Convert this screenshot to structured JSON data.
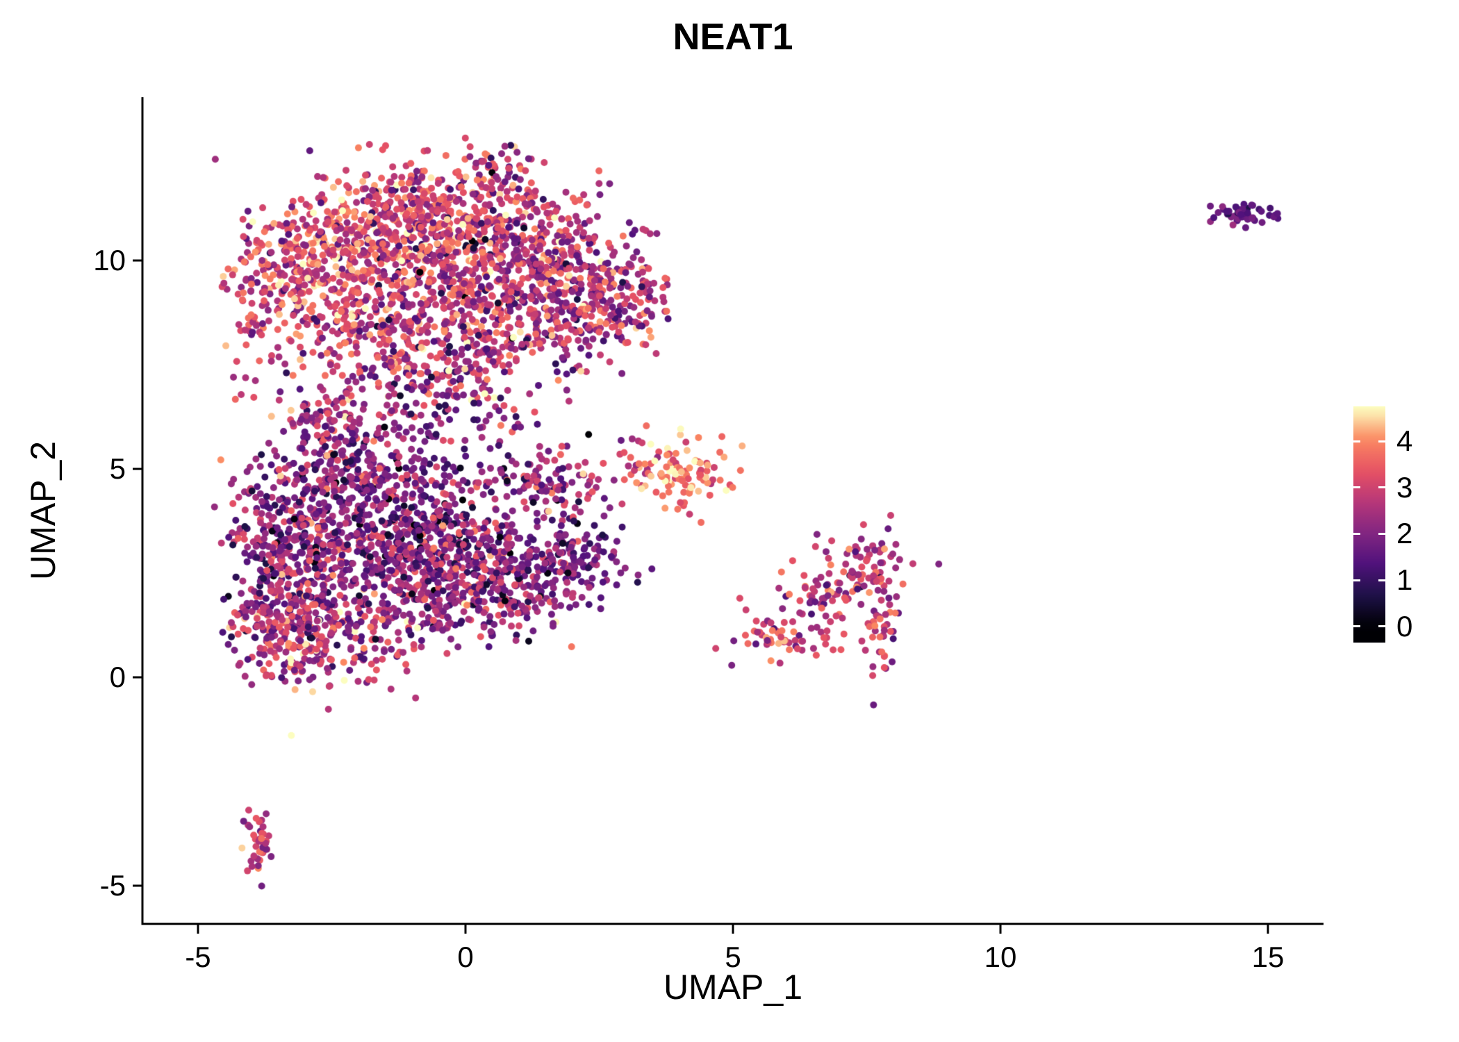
{
  "title": "NEAT1",
  "chart_data": {
    "type": "scatter",
    "title": "NEAT1",
    "xlabel": "UMAP_1",
    "ylabel": "UMAP_2",
    "xlim": [
      -6.0,
      16.0
    ],
    "ylim": [
      -5.9,
      13.9
    ],
    "grid": false,
    "background_color": "#FFFFFF",
    "axis_color": "#000000",
    "text_color": "#000000",
    "x_ticks": [
      {
        "value": -5,
        "label": "-5"
      },
      {
        "value": 0,
        "label": "0"
      },
      {
        "value": 5,
        "label": "5"
      },
      {
        "value": 10,
        "label": "10"
      },
      {
        "value": 15,
        "label": "15"
      }
    ],
    "y_ticks": [
      {
        "value": -5,
        "label": "-5"
      },
      {
        "value": 0,
        "label": "0"
      },
      {
        "value": 5,
        "label": "5"
      },
      {
        "value": 10,
        "label": "10"
      }
    ],
    "legend": {
      "position": "right",
      "bar_range": [
        -0.35,
        4.75
      ],
      "tick_labels": [
        {
          "value": 4,
          "label": "4"
        },
        {
          "value": 3,
          "label": "3"
        },
        {
          "value": 2,
          "label": "2"
        },
        {
          "value": 1,
          "label": "1"
        },
        {
          "value": 0,
          "label": "0"
        }
      ],
      "colormap": "magma",
      "stops": [
        {
          "t": 0.0,
          "color": "#000004"
        },
        {
          "t": 0.14,
          "color": "#1D1147"
        },
        {
          "t": 0.29,
          "color": "#51127C"
        },
        {
          "t": 0.43,
          "color": "#822681"
        },
        {
          "t": 0.57,
          "color": "#B63679"
        },
        {
          "t": 0.71,
          "color": "#E65164"
        },
        {
          "t": 0.86,
          "color": "#FB8861"
        },
        {
          "t": 1.0,
          "color": "#FCFDBF"
        }
      ]
    },
    "expr_range": [
      0,
      4.7
    ],
    "point_radius_px": 5,
    "seed": 42,
    "clusters": [
      {
        "name": "upper-main-cluster",
        "blobs": [
          {
            "x": -2.4,
            "y": 10.4,
            "sx": 0.8,
            "sy": 0.75,
            "n": 260,
            "mean": 3.3,
            "sd": 0.8
          },
          {
            "x": -1.2,
            "y": 11.2,
            "sx": 0.7,
            "sy": 0.6,
            "n": 190,
            "mean": 3.1,
            "sd": 0.8
          },
          {
            "x": 0.2,
            "y": 10.8,
            "sx": 0.9,
            "sy": 0.7,
            "n": 260,
            "mean": 2.9,
            "sd": 0.9
          },
          {
            "x": 1.3,
            "y": 10.0,
            "sx": 0.8,
            "sy": 0.8,
            "n": 240,
            "mean": 2.8,
            "sd": 0.9
          },
          {
            "x": -0.6,
            "y": 9.4,
            "sx": 1.0,
            "sy": 0.8,
            "n": 280,
            "mean": 2.9,
            "sd": 0.9
          },
          {
            "x": 0.8,
            "y": 8.4,
            "sx": 1.0,
            "sy": 0.7,
            "n": 220,
            "mean": 2.7,
            "sd": 0.9
          },
          {
            "x": 2.4,
            "y": 8.9,
            "sx": 0.55,
            "sy": 0.85,
            "n": 150,
            "mean": 2.6,
            "sd": 0.85
          },
          {
            "x": 3.1,
            "y": 9.2,
            "sx": 0.35,
            "sy": 0.5,
            "n": 60,
            "mean": 2.4,
            "sd": 0.8
          },
          {
            "x": -3.2,
            "y": 9.6,
            "sx": 0.45,
            "sy": 0.7,
            "n": 110,
            "mean": 3.1,
            "sd": 0.8
          },
          {
            "x": -3.9,
            "y": 8.8,
            "sx": 0.3,
            "sy": 0.8,
            "n": 60,
            "mean": 2.9,
            "sd": 0.8
          },
          {
            "x": -2.0,
            "y": 8.3,
            "sx": 0.7,
            "sy": 0.6,
            "n": 150,
            "mean": 2.8,
            "sd": 0.9
          },
          {
            "x": 0.55,
            "y": 12.1,
            "sx": 0.5,
            "sy": 0.35,
            "n": 60,
            "mean": 2.6,
            "sd": 0.9
          },
          {
            "x": -0.6,
            "y": 7.2,
            "sx": 0.8,
            "sy": 0.5,
            "n": 120,
            "mean": 2.4,
            "sd": 0.9
          },
          {
            "x": -0.3,
            "y": 9.8,
            "sx": 1.6,
            "sy": 1.3,
            "n": 30,
            "mean": 0.8,
            "sd": 0.5
          }
        ]
      },
      {
        "name": "lower-main-cluster",
        "blobs": [
          {
            "x": -2.7,
            "y": 3.6,
            "sx": 0.8,
            "sy": 1.0,
            "n": 300,
            "mean": 2.1,
            "sd": 0.8
          },
          {
            "x": -1.4,
            "y": 3.2,
            "sx": 0.9,
            "sy": 0.9,
            "n": 300,
            "mean": 2.0,
            "sd": 0.8
          },
          {
            "x": -0.1,
            "y": 2.9,
            "sx": 0.9,
            "sy": 0.75,
            "n": 260,
            "mean": 2.1,
            "sd": 0.8
          },
          {
            "x": 1.0,
            "y": 2.6,
            "sx": 0.7,
            "sy": 0.6,
            "n": 160,
            "mean": 2.0,
            "sd": 0.8
          },
          {
            "x": -3.4,
            "y": 1.3,
            "sx": 0.55,
            "sy": 0.75,
            "n": 200,
            "mean": 2.6,
            "sd": 0.85
          },
          {
            "x": -2.3,
            "y": 0.9,
            "sx": 0.7,
            "sy": 0.5,
            "n": 150,
            "mean": 2.5,
            "sd": 0.85
          },
          {
            "x": -1.7,
            "y": 4.9,
            "sx": 1.0,
            "sy": 0.55,
            "n": 200,
            "mean": 2.0,
            "sd": 0.85
          },
          {
            "x": -3.6,
            "y": 3.0,
            "sx": 0.4,
            "sy": 0.9,
            "n": 130,
            "mean": 2.3,
            "sd": 0.8
          },
          {
            "x": 1.6,
            "y": 4.65,
            "sx": 0.55,
            "sy": 0.35,
            "n": 90,
            "mean": 2.4,
            "sd": 0.9
          },
          {
            "x": 2.0,
            "y": 2.9,
            "sx": 0.45,
            "sy": 0.45,
            "n": 80,
            "mean": 1.7,
            "sd": 0.7
          },
          {
            "x": -0.2,
            "y": 1.6,
            "sx": 1.0,
            "sy": 0.5,
            "n": 150,
            "mean": 2.2,
            "sd": 0.8
          },
          {
            "x": -0.6,
            "y": 3.8,
            "sx": 1.3,
            "sy": 1.0,
            "n": 45,
            "mean": 0.6,
            "sd": 0.45
          },
          {
            "x": -0.2,
            "y": 6.2,
            "sx": 1.3,
            "sy": 0.45,
            "n": 70,
            "mean": 2.2,
            "sd": 0.9
          },
          {
            "x": -2.6,
            "y": 6.3,
            "sx": 0.5,
            "sy": 0.7,
            "n": 90,
            "mean": 2.4,
            "sd": 0.85
          },
          {
            "x": 3.1,
            "y": 2.5,
            "sx": 0.25,
            "sy": 0.2,
            "n": 6,
            "mean": 1.8,
            "sd": 0.6
          }
        ]
      },
      {
        "name": "bright-high-expression-cluster",
        "blobs": [
          {
            "x": 4.05,
            "y": 4.85,
            "sx": 0.42,
            "sy": 0.45,
            "n": 95,
            "mean": 3.9,
            "sd": 0.5
          },
          {
            "x": 3.3,
            "y": 5.3,
            "sx": 0.3,
            "sy": 0.35,
            "n": 18,
            "mean": 3.0,
            "sd": 0.7
          }
        ]
      },
      {
        "name": "right-middle-cluster",
        "blobs": [
          {
            "x": 7.4,
            "y": 2.6,
            "sx": 0.45,
            "sy": 0.5,
            "n": 75,
            "mean": 2.7,
            "sd": 0.8
          },
          {
            "x": 6.6,
            "y": 1.9,
            "sx": 0.45,
            "sy": 0.4,
            "n": 55,
            "mean": 2.8,
            "sd": 0.8
          },
          {
            "x": 5.9,
            "y": 1.0,
            "sx": 0.45,
            "sy": 0.3,
            "n": 55,
            "mean": 3.1,
            "sd": 0.7
          },
          {
            "x": 7.75,
            "y": 1.3,
            "sx": 0.18,
            "sy": 0.55,
            "n": 40,
            "mean": 2.7,
            "sd": 0.8
          }
        ]
      },
      {
        "name": "far-right-cluster",
        "blobs": [
          {
            "x": 14.55,
            "y": 11.1,
            "sx": 0.33,
            "sy": 0.13,
            "n": 48,
            "mean": 1.6,
            "sd": 0.35
          }
        ]
      },
      {
        "name": "bottom-left-cluster",
        "blobs": [
          {
            "x": -3.85,
            "y": -3.85,
            "sx": 0.13,
            "sy": 0.42,
            "n": 40,
            "mean": 2.9,
            "sd": 0.6
          }
        ]
      }
    ]
  }
}
